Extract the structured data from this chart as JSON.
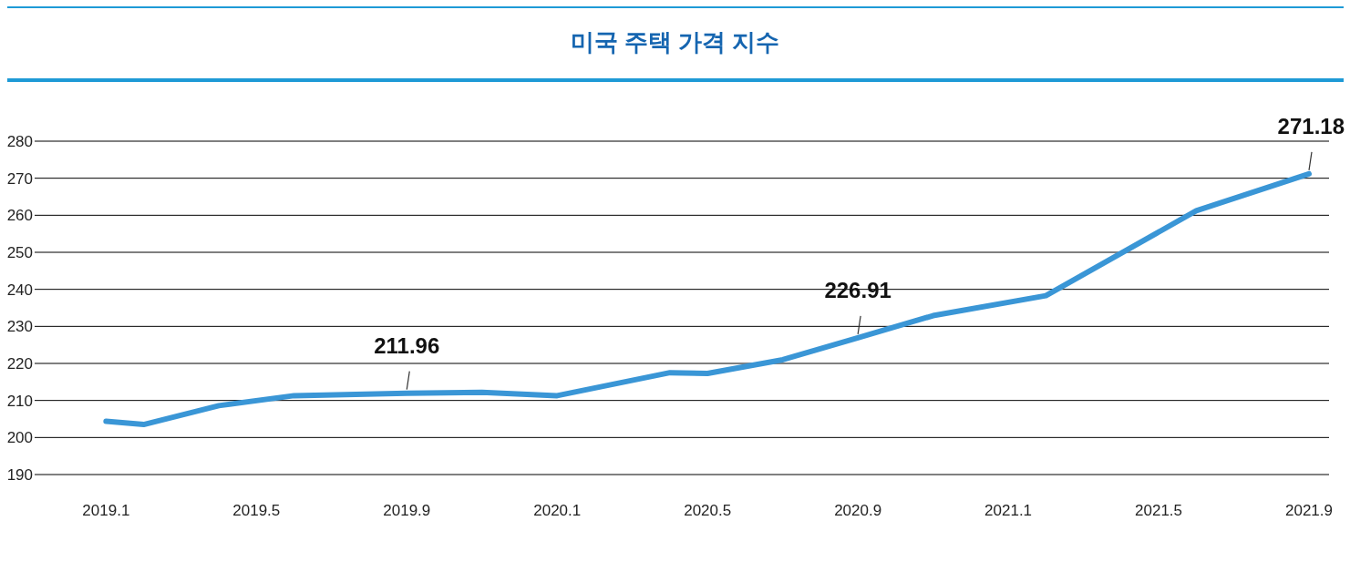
{
  "chart_data": {
    "type": "line",
    "title": "미국 주택 가격 지수",
    "x": [
      "2019-01",
      "2019-02",
      "2019-04",
      "2019-06",
      "2019-09",
      "2019-11",
      "2020-01",
      "2020-04",
      "2020-05",
      "2020-07",
      "2020-09",
      "2020-11",
      "2021-02",
      "2021-06",
      "2021-09"
    ],
    "series": [
      {
        "color": "#3a96d6",
        "values": [
          204.4,
          203.5,
          208.6,
          211.3,
          211.96,
          212.2,
          211.3,
          217.5,
          217.3,
          221,
          226.91,
          232.9,
          238.3,
          261.2,
          271.18
        ],
        "value_labels": [
          null,
          null,
          null,
          null,
          "211.96",
          null,
          null,
          null,
          null,
          null,
          "226.91",
          null,
          null,
          null,
          "271.18"
        ]
      }
    ],
    "xlim": [
      "2018-11-04",
      "2021-09-17"
    ],
    "xticks": [
      {
        "value": "2019-01",
        "label": "2019.1"
      },
      {
        "value": "2019-05",
        "label": "2019.5"
      },
      {
        "value": "2019-09",
        "label": "2019.9"
      },
      {
        "value": "2020-01",
        "label": "2020.1"
      },
      {
        "value": "2020-05",
        "label": "2020.5"
      },
      {
        "value": "2020-09",
        "label": "2020.9"
      },
      {
        "value": "2021-01",
        "label": "2021.1"
      },
      {
        "value": "2021-05",
        "label": "2021.5"
      },
      {
        "value": "2021-09",
        "label": "2021.9"
      }
    ],
    "ylim": [
      190,
      280
    ],
    "yticks": [
      190,
      200,
      210,
      220,
      230,
      240,
      250,
      260,
      270,
      280
    ],
    "grid": "y",
    "marker": "none",
    "line_style": "solid"
  }
}
